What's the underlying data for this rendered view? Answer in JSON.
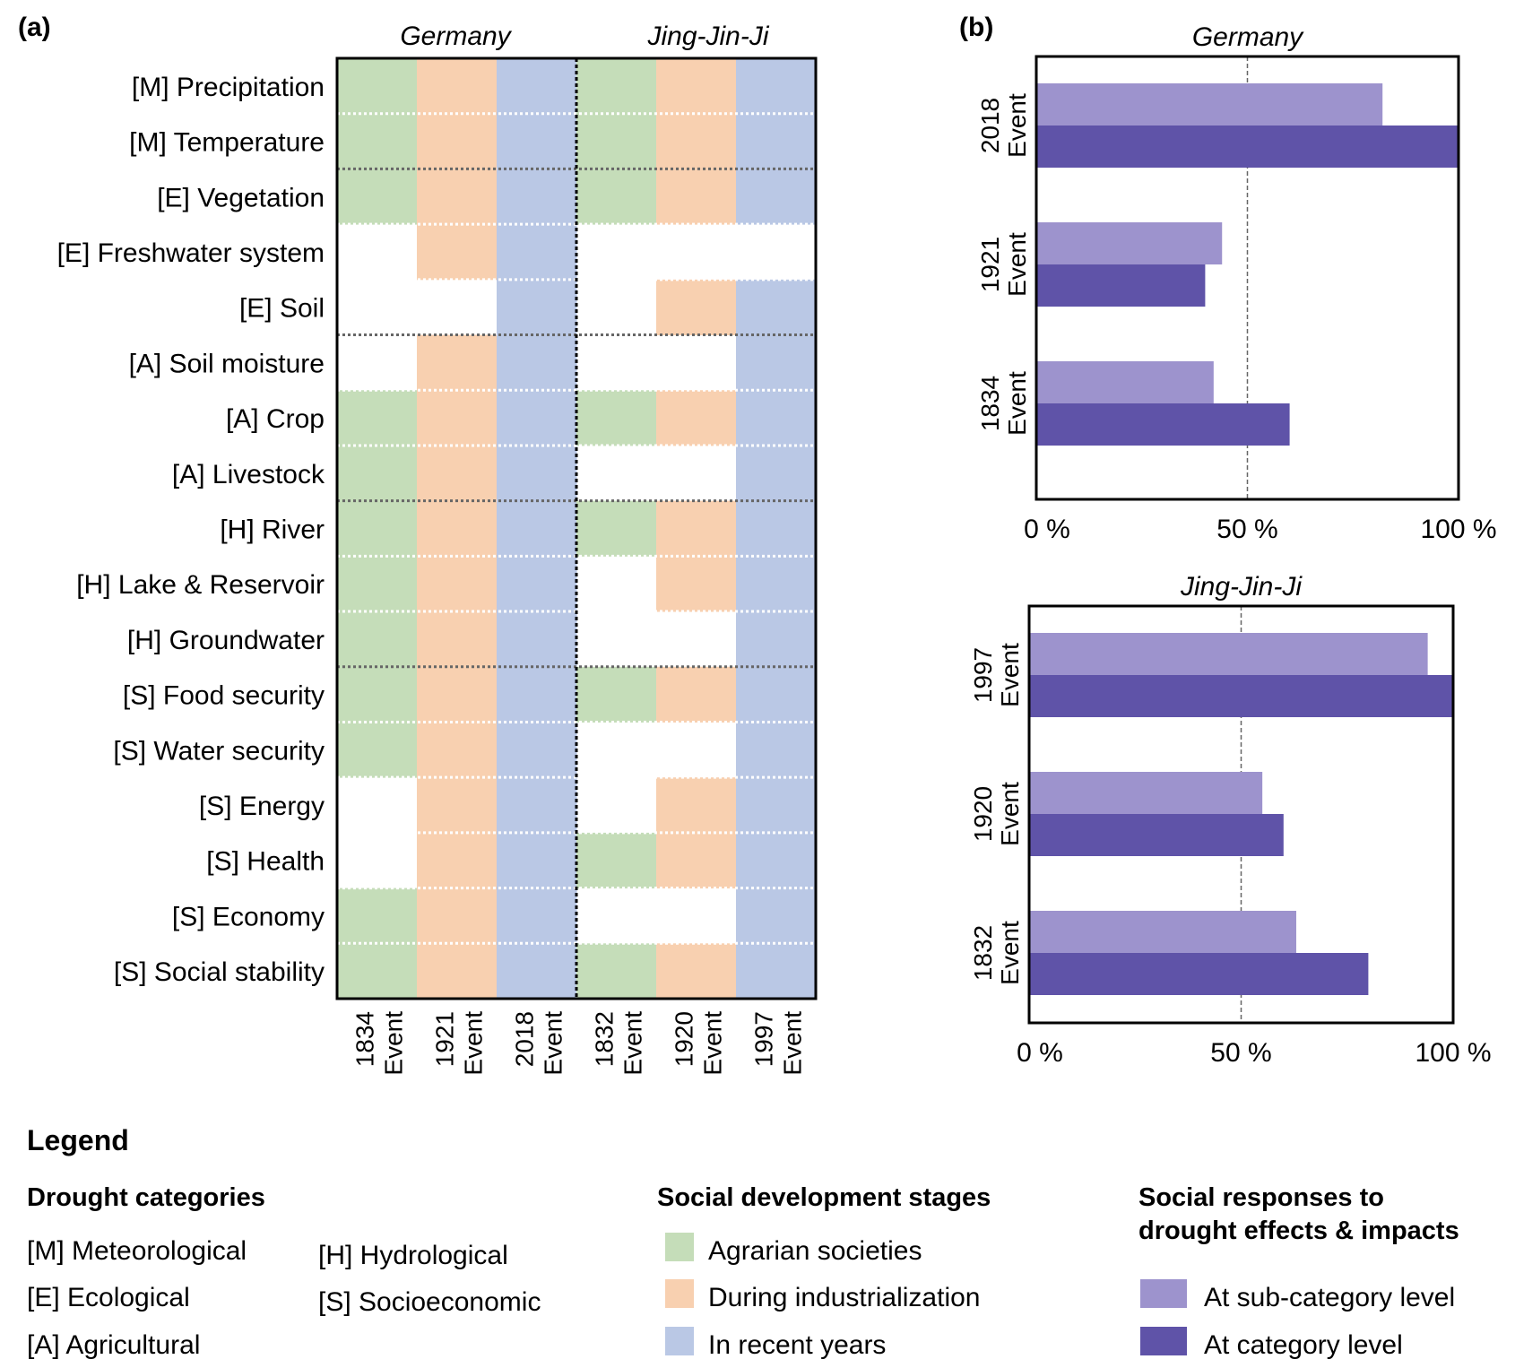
{
  "panel_a": {
    "label": "(a)",
    "group_titles": [
      "Germany",
      "Jing-Jin-Ji"
    ]
  },
  "panel_b": {
    "label": "(b)"
  },
  "colors": {
    "agrarian": "#c5ddb9",
    "industrialization": "#f8d0b0",
    "recent": "#bac8e5",
    "sub_category": "#9d93cd",
    "category": "#5f53a8"
  },
  "chart_data": [
    {
      "type": "heatmap",
      "title": "",
      "groups": [
        "Germany",
        "Jing-Jin-Ji"
      ],
      "columns": [
        {
          "year": "1834",
          "label": "Event",
          "group": "Germany",
          "stage": "agrarian"
        },
        {
          "year": "1921",
          "label": "Event",
          "group": "Germany",
          "stage": "industrialization"
        },
        {
          "year": "2018",
          "label": "Event",
          "group": "Germany",
          "stage": "recent"
        },
        {
          "year": "1832",
          "label": "Event",
          "group": "Jing-Jin-Ji",
          "stage": "agrarian"
        },
        {
          "year": "1920",
          "label": "Event",
          "group": "Jing-Jin-Ji",
          "stage": "industrialization"
        },
        {
          "year": "1997",
          "label": "Event",
          "group": "Jing-Jin-Ji",
          "stage": "recent"
        }
      ],
      "rows": [
        "[M] Precipitation",
        "[M] Temperature",
        "[E] Vegetation",
        "[E] Freshwater system",
        "[E] Soil",
        "[A] Soil moisture",
        "[A] Crop",
        "[A] Livestock",
        "[H] River",
        "[H] Lake & Reservoir",
        "[H] Groundwater",
        "[S] Food security",
        "[S] Water security",
        "[S] Energy",
        "[S] Health",
        "[S] Economy",
        "[S] Social stability"
      ],
      "values": [
        [
          1,
          1,
          1,
          1,
          1,
          1
        ],
        [
          1,
          1,
          1,
          1,
          1,
          1
        ],
        [
          1,
          1,
          1,
          1,
          1,
          1
        ],
        [
          0,
          1,
          1,
          0,
          0,
          0
        ],
        [
          0,
          0,
          1,
          0,
          1,
          1
        ],
        [
          0,
          1,
          1,
          0,
          0,
          1
        ],
        [
          1,
          1,
          1,
          1,
          1,
          1
        ],
        [
          1,
          1,
          1,
          0,
          0,
          1
        ],
        [
          1,
          1,
          1,
          1,
          1,
          1
        ],
        [
          1,
          1,
          1,
          0,
          1,
          1
        ],
        [
          1,
          1,
          1,
          0,
          0,
          1
        ],
        [
          1,
          1,
          1,
          1,
          1,
          1
        ],
        [
          1,
          1,
          1,
          0,
          0,
          1
        ],
        [
          0,
          1,
          1,
          0,
          1,
          1
        ],
        [
          0,
          1,
          1,
          1,
          1,
          1
        ],
        [
          1,
          1,
          1,
          0,
          0,
          1
        ],
        [
          1,
          1,
          1,
          1,
          1,
          1
        ]
      ]
    },
    {
      "type": "bar",
      "orientation": "horizontal",
      "title": "Germany",
      "categories": [
        {
          "year": "2018",
          "label": "Event"
        },
        {
          "year": "1921",
          "label": "Event"
        },
        {
          "year": "1834",
          "label": "Event"
        }
      ],
      "series": [
        {
          "name": "At sub-category level",
          "values": [
            82,
            44,
            42
          ]
        },
        {
          "name": "At category level",
          "values": [
            100,
            40,
            60
          ]
        }
      ],
      "xlim": [
        0,
        100
      ],
      "xticks": [
        "0 %",
        "50 %",
        "100 %"
      ],
      "reference_line": 50
    },
    {
      "type": "bar",
      "orientation": "horizontal",
      "title": "Jing-Jin-Ji",
      "categories": [
        {
          "year": "1997",
          "label": "Event"
        },
        {
          "year": "1920",
          "label": "Event"
        },
        {
          "year": "1832",
          "label": "Event"
        }
      ],
      "series": [
        {
          "name": "At sub-category level",
          "values": [
            94,
            55,
            63
          ]
        },
        {
          "name": "At category level",
          "values": [
            100,
            60,
            80
          ]
        }
      ],
      "xlim": [
        0,
        100
      ],
      "xticks": [
        "0 %",
        "50 %",
        "100 %"
      ],
      "reference_line": 50
    }
  ],
  "legend": {
    "title": "Legend",
    "drought_categories": {
      "title": "Drought categories",
      "items": [
        "[M] Meteorological",
        "[E] Ecological",
        "[A] Agricultural",
        "[H] Hydrological",
        "[S] Socioeconomic"
      ]
    },
    "stages": {
      "title": "Social development stages",
      "items": [
        "Agrarian societies",
        "During industrialization",
        "In recent years"
      ]
    },
    "responses": {
      "title_line1": "Social responses to",
      "title_line2": "drought effects & impacts",
      "items": [
        "At sub-category level",
        "At category level"
      ]
    }
  }
}
